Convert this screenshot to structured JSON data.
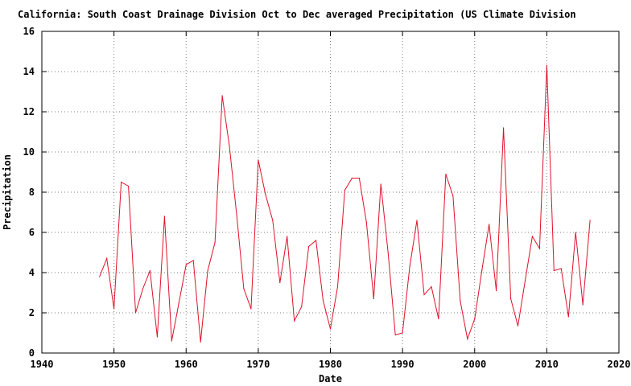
{
  "chart_data": {
    "type": "line",
    "title": "California: South Coast Drainage          Division  Oct to Dec averaged Precipitation  (US Climate Division",
    "xlabel": "Date",
    "ylabel": "Precipitation",
    "xlim": [
      1940,
      2020
    ],
    "ylim": [
      0,
      16
    ],
    "x_ticks": [
      1940,
      1950,
      1960,
      1970,
      1980,
      1990,
      2000,
      2010,
      2020
    ],
    "y_ticks": [
      0,
      2,
      4,
      6,
      8,
      10,
      12,
      14,
      16
    ],
    "grid": true,
    "line_color": "#e0102a",
    "series": [
      {
        "x": [
          1948,
          1949,
          1950,
          1951,
          1952,
          1953,
          1954,
          1955,
          1956,
          1957,
          1958,
          1959,
          1960,
          1961,
          1962,
          1963,
          1964,
          1965,
          1966,
          1967,
          1968,
          1969,
          1970,
          1971,
          1972,
          1973,
          1974,
          1975,
          1976,
          1977,
          1978,
          1979,
          1980,
          1981,
          1982,
          1983,
          1984,
          1985,
          1986,
          1987,
          1988,
          1989,
          1990,
          1991,
          1992,
          1993,
          1994,
          1995,
          1996,
          1997,
          1998,
          1999,
          2000,
          2001,
          2002,
          2003,
          2004,
          2005,
          2006,
          2007,
          2008,
          2009,
          2010,
          2011,
          2012,
          2013,
          2014,
          2015,
          2016
        ],
        "values": [
          3.8,
          4.7,
          2.2,
          8.5,
          8.3,
          2.0,
          3.2,
          4.1,
          0.8,
          6.8,
          0.6,
          2.5,
          4.4,
          4.6,
          0.55,
          4.1,
          5.5,
          12.8,
          10.3,
          6.9,
          3.2,
          2.2,
          9.6,
          7.9,
          6.6,
          3.5,
          5.8,
          1.6,
          2.3,
          5.3,
          5.6,
          2.6,
          1.2,
          3.3,
          8.1,
          8.7,
          8.7,
          6.5,
          2.7,
          8.4,
          5.0,
          0.9,
          1.0,
          4.3,
          6.6,
          2.9,
          3.3,
          1.7,
          8.9,
          7.8,
          2.6,
          0.7,
          1.7,
          4.1,
          6.4,
          3.1,
          11.2,
          2.7,
          1.35,
          3.6,
          5.8,
          5.2,
          14.3,
          4.1,
          4.2,
          1.8,
          6.0,
          2.4,
          6.6
        ]
      }
    ]
  }
}
